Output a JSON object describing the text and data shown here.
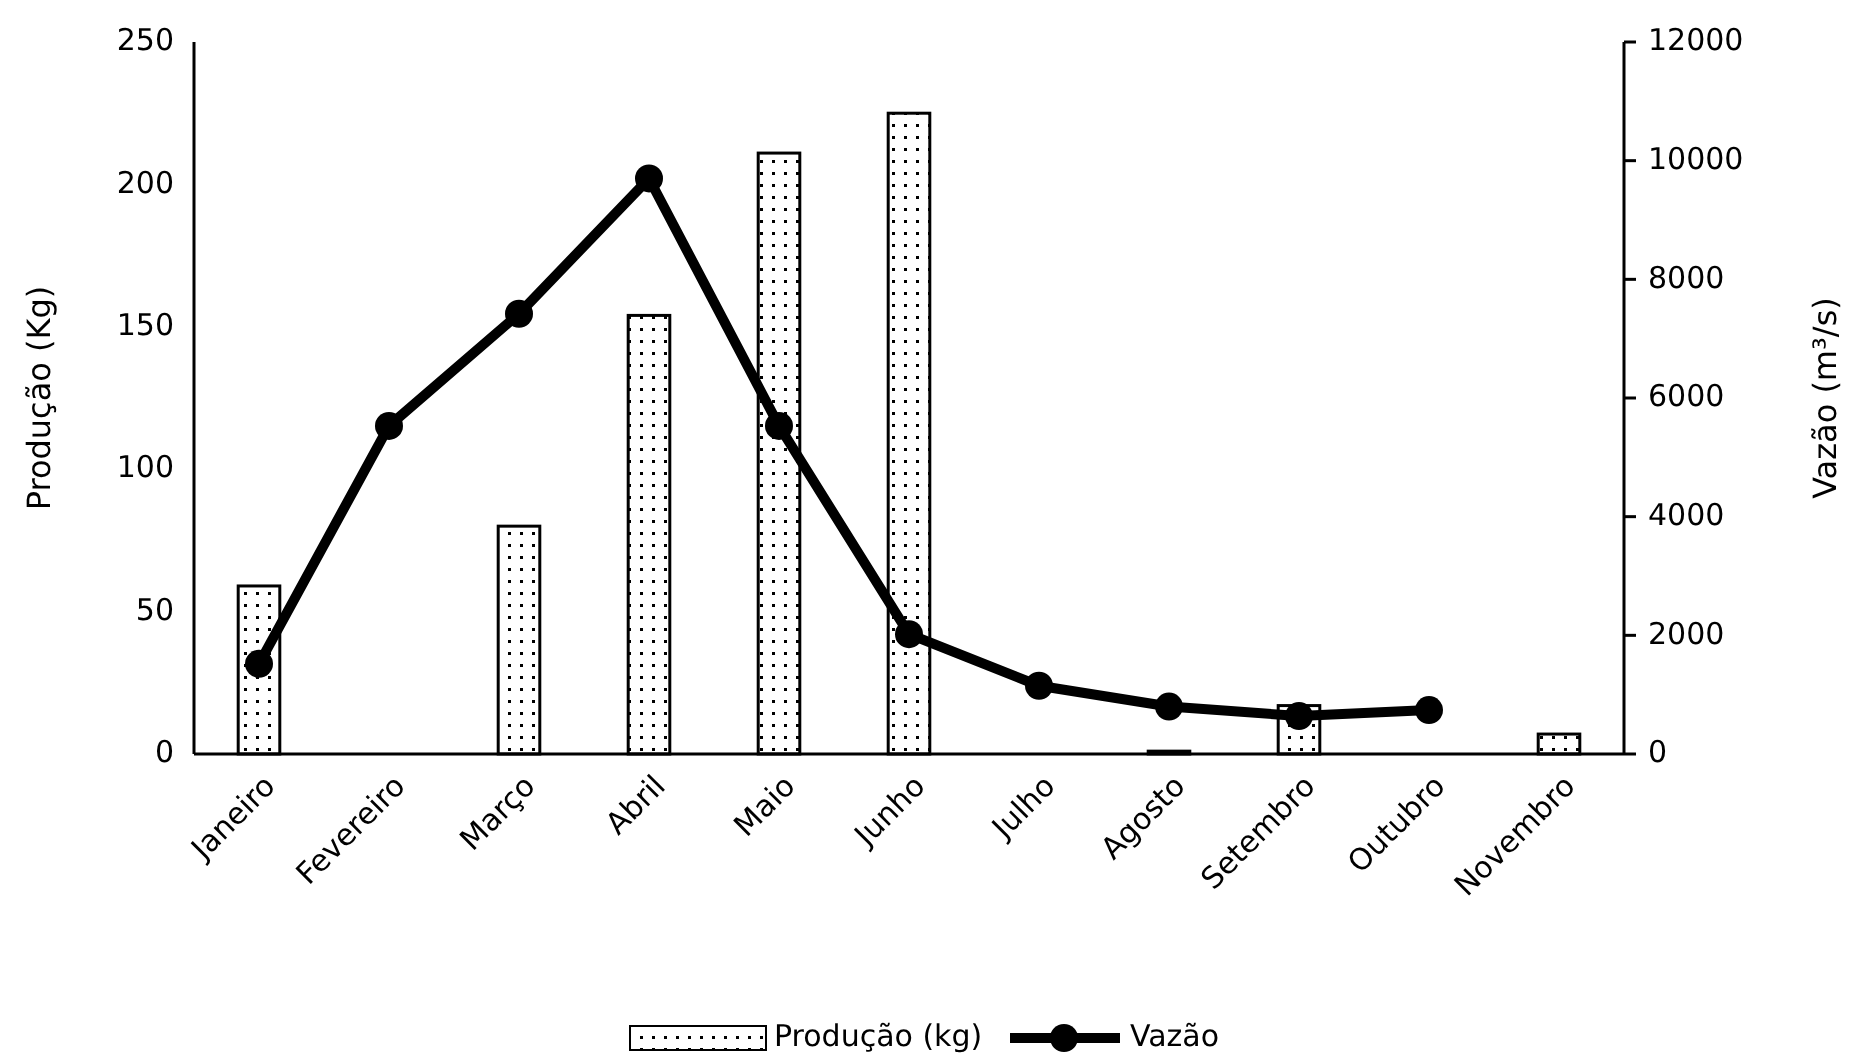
{
  "chart_data": {
    "type": "bar",
    "categories": [
      "Janeiro",
      "Fevereiro",
      "Março",
      "Abril",
      "Maio",
      "Junho",
      "Julho",
      "Agosto",
      "Setembro",
      "Outubro",
      "Novembro"
    ],
    "series": [
      {
        "name": "Produção (kg)",
        "color": "#000000",
        "values": [
          59,
          0,
          80,
          154,
          211,
          225,
          0,
          1,
          17,
          0,
          7
        ]
      },
      {
        "name": "Vazão",
        "type": "line",
        "axis": "y2",
        "color": "#000000",
        "values": [
          1520,
          5530,
          7420,
          9700,
          5530,
          2020,
          1150,
          800,
          640,
          740,
          null
        ]
      }
    ],
    "ylabel": "Produção (Kg)",
    "y2label": "Vazão (m³/s)",
    "ylim": [
      0,
      250
    ],
    "yticks": [
      0,
      50,
      100,
      150,
      200,
      250
    ],
    "y2lim": [
      0,
      12000
    ],
    "y2ticks": [
      0,
      2000,
      4000,
      6000,
      8000,
      10000,
      12000
    ],
    "grid": false,
    "legend": "bottom",
    "marker": "circle",
    "line_style": "solid"
  }
}
